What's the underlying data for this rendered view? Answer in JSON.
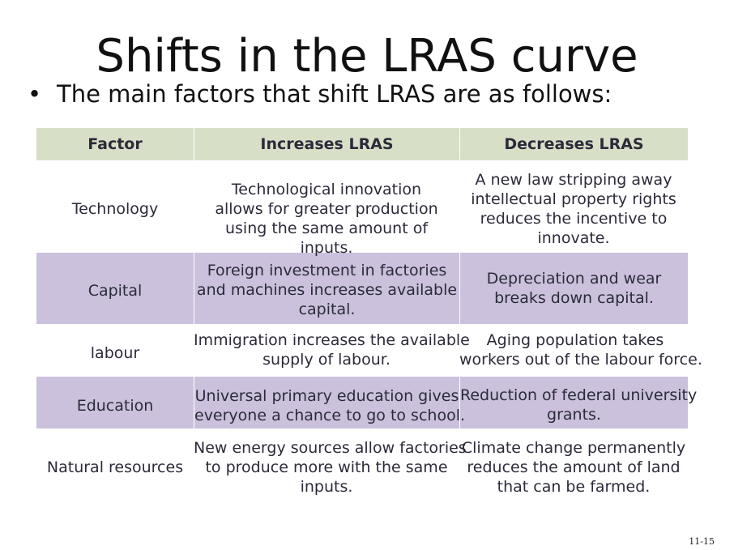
{
  "slide": {
    "title": "Shifts in the LRAS curve",
    "bullet": "The main factors that shift LRAS are as follows:",
    "page_number": "11-15"
  },
  "table": {
    "headers": [
      "Factor",
      "Increases LRAS",
      "Decreases LRAS"
    ],
    "rows": [
      {
        "factor": "Technology",
        "increases": [
          "Technological innovation",
          "allows for greater production",
          "using the same amount of",
          "inputs."
        ],
        "decreases": [
          "A new law stripping away",
          "intellectual property rights",
          "reduces the incentive to",
          "innovate."
        ]
      },
      {
        "factor": "Capital",
        "increases": [
          "Foreign investment in factories",
          "and machines increases available",
          "capital."
        ],
        "decreases": [
          "Depreciation and wear",
          "breaks down capital."
        ]
      },
      {
        "factor": "labour",
        "increases": [
          "Immigration increases the available",
          "supply of labour."
        ],
        "decreases": [
          "Aging population takes",
          "workers out of the labour force."
        ]
      },
      {
        "factor": "Education",
        "increases": [
          "Universal primary education gives",
          "everyone a chance to go to school."
        ],
        "decreases": [
          "Reduction of federal university",
          "grants."
        ]
      },
      {
        "factor": "Natural resources",
        "increases": [
          "New energy sources allow factories",
          "to produce more with the same",
          "inputs."
        ],
        "decreases": [
          "Climate change permanently",
          "reduces the amount of land",
          "that can be farmed."
        ]
      }
    ]
  },
  "colors": {
    "header_bg": "#d8dfc7",
    "band_bg": "#cbc1dc",
    "cell_text": "#2b2b3a"
  }
}
